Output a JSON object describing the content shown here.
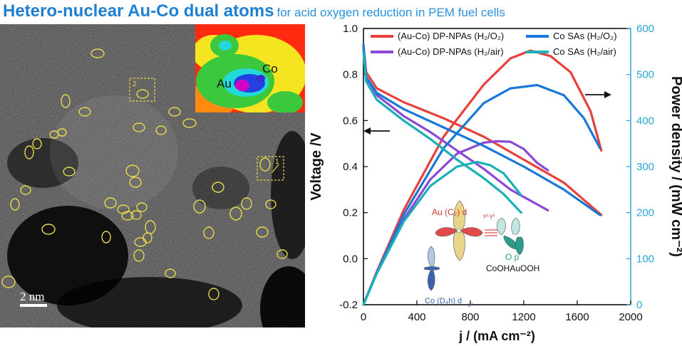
{
  "banner": {
    "title": "Hetero-nuclear Au-Co dual atoms",
    "subtitle": "for acid oxygen reduction in PEM fuel cells"
  },
  "micrograph": {
    "scale_bar_label": "2  nm",
    "inset_labels": [
      "Au",
      "Co"
    ],
    "box_labels": [
      "1",
      "2"
    ]
  },
  "chart_data": {
    "type": "line",
    "xlabel": "j / (mA cm⁻²)",
    "ylabel_left": "Voltage /V",
    "ylabel_right": "Power density / (mW cm⁻²)",
    "xlim": [
      0,
      2000
    ],
    "ylim_left": [
      -0.2,
      1.0
    ],
    "ylim_right": [
      0,
      600
    ],
    "x_ticks": [
      "0",
      "400",
      "800",
      "1200",
      "1600",
      "2000"
    ],
    "y_left_ticks": [
      "-0.2",
      "0.0",
      "0.2",
      "0.4",
      "0.6",
      "0.8",
      "1.0"
    ],
    "y_right_ticks": [
      "0",
      "100",
      "200",
      "300",
      "400",
      "500",
      "600"
    ],
    "legend_position": "top",
    "series": [
      {
        "name": "(Au-Co) DP-NPAs (H₂/O₂)",
        "color": "#e8413c",
        "voltage": [
          [
            0,
            0.93
          ],
          [
            20,
            0.81
          ],
          [
            100,
            0.74
          ],
          [
            300,
            0.68
          ],
          [
            600,
            0.61
          ],
          [
            900,
            0.53
          ],
          [
            1200,
            0.43
          ],
          [
            1500,
            0.33
          ],
          [
            1780,
            0.19
          ]
        ],
        "power": [
          [
            0,
            0
          ],
          [
            100,
            72
          ],
          [
            300,
            205
          ],
          [
            600,
            365
          ],
          [
            900,
            478
          ],
          [
            1100,
            535
          ],
          [
            1250,
            552
          ],
          [
            1400,
            540
          ],
          [
            1550,
            505
          ],
          [
            1700,
            420
          ],
          [
            1780,
            335
          ]
        ]
      },
      {
        "name": "(Au-Co) DP-NPAs (H₂/air)",
        "color": "#8b49d6",
        "voltage": [
          [
            0,
            0.92
          ],
          [
            20,
            0.79
          ],
          [
            100,
            0.71
          ],
          [
            300,
            0.62
          ],
          [
            500,
            0.55
          ],
          [
            700,
            0.47
          ],
          [
            900,
            0.39
          ],
          [
            1100,
            0.3
          ],
          [
            1380,
            0.21
          ]
        ],
        "power": [
          [
            0,
            0
          ],
          [
            100,
            70
          ],
          [
            300,
            185
          ],
          [
            500,
            272
          ],
          [
            700,
            328
          ],
          [
            900,
            352
          ],
          [
            1000,
            355
          ],
          [
            1100,
            354
          ],
          [
            1200,
            338
          ],
          [
            1300,
            308
          ],
          [
            1380,
            292
          ]
        ]
      },
      {
        "name": "Co SAs (H₂/O₂)",
        "color": "#1a78d8",
        "voltage": [
          [
            0,
            0.93
          ],
          [
            20,
            0.79
          ],
          [
            100,
            0.72
          ],
          [
            300,
            0.65
          ],
          [
            600,
            0.57
          ],
          [
            900,
            0.49
          ],
          [
            1200,
            0.4
          ],
          [
            1500,
            0.3
          ],
          [
            1770,
            0.19
          ]
        ],
        "power": [
          [
            0,
            0
          ],
          [
            100,
            70
          ],
          [
            300,
            195
          ],
          [
            600,
            340
          ],
          [
            900,
            438
          ],
          [
            1100,
            470
          ],
          [
            1300,
            477
          ],
          [
            1500,
            455
          ],
          [
            1650,
            405
          ],
          [
            1770,
            340
          ]
        ]
      },
      {
        "name": "Co SAs (H₂/air)",
        "color": "#1ab0b8",
        "voltage": [
          [
            0,
            0.9
          ],
          [
            20,
            0.77
          ],
          [
            100,
            0.69
          ],
          [
            300,
            0.6
          ],
          [
            500,
            0.52
          ],
          [
            700,
            0.43
          ],
          [
            900,
            0.35
          ],
          [
            1050,
            0.28
          ],
          [
            1180,
            0.2
          ]
        ],
        "power": [
          [
            0,
            0
          ],
          [
            100,
            68
          ],
          [
            300,
            180
          ],
          [
            500,
            258
          ],
          [
            700,
            300
          ],
          [
            850,
            310
          ],
          [
            950,
            303
          ],
          [
            1050,
            285
          ],
          [
            1120,
            260
          ],
          [
            1180,
            238
          ]
        ]
      }
    ],
    "annotations": {
      "au_label": "Au (C₂) d",
      "au_sub": "x²-y²",
      "co_label": "Co (D₄h) d",
      "co_sub": "z²",
      "o_label": "O p",
      "formula": "CoOHAuOOH"
    }
  }
}
